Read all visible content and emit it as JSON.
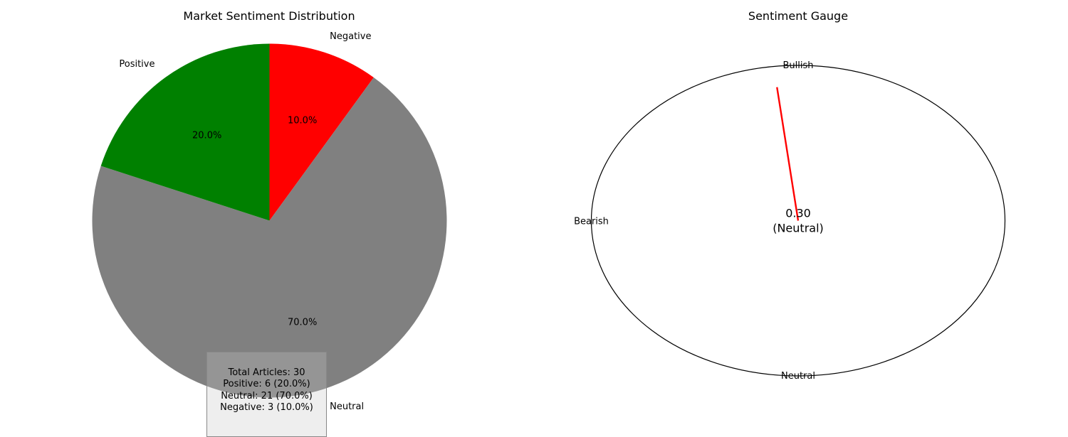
{
  "chart_data": [
    {
      "type": "pie",
      "title": "Market Sentiment Distribution",
      "slices": [
        {
          "label": "Negative",
          "value": 10.0,
          "pct_label": "10.0%",
          "color": "#ff0000"
        },
        {
          "label": "Neutral",
          "value": 70.0,
          "pct_label": "70.0%",
          "color": "#808080"
        },
        {
          "label": "Positive",
          "value": 20.0,
          "pct_label": "20.0%",
          "color": "#008000"
        }
      ],
      "start": "top, clockwise"
    },
    {
      "type": "gauge",
      "title": "Sentiment Gauge",
      "value": 0.3,
      "value_label": "0.30",
      "category_label": "(Neutral)",
      "labels": {
        "top": "Bullish",
        "left": "Bearish",
        "bottom": "Neutral"
      },
      "needle_color": "#ff0000"
    }
  ],
  "summary": {
    "total": "Total Articles: 30",
    "positive": "Positive: 6 (20.0%)",
    "neutral": "Neutral: 21 (70.0%)",
    "negative": "Negative: 3 (10.0%)"
  }
}
